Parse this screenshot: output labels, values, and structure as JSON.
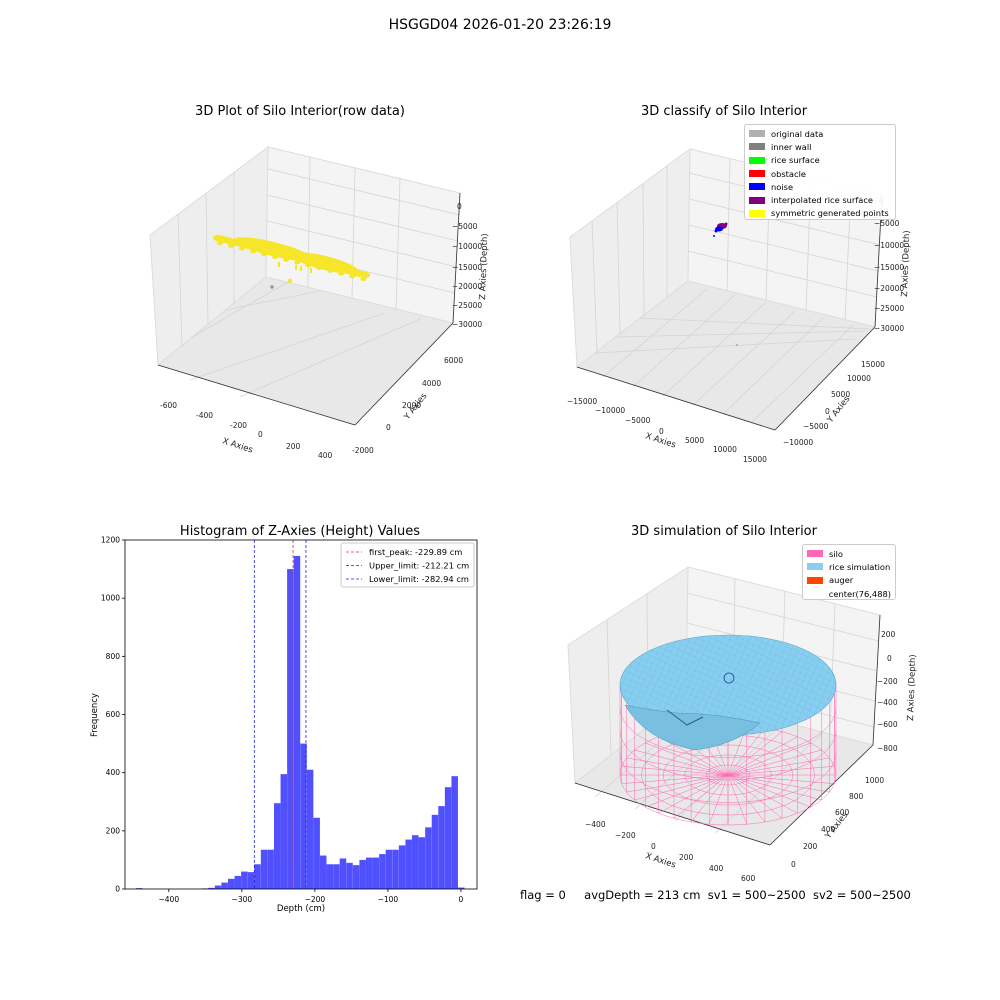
{
  "figure": {
    "suptitle": "HSGGD04 2026-01-20 23:26:19",
    "status": {
      "flag": "flag = 0",
      "avg_depth": "avgDepth = 213 cm",
      "sv1": "sv1 = 500~2500",
      "sv2": "sv2 = 500~2500"
    }
  },
  "colors": {
    "yellow": "#f5e62a",
    "hist_bar": "#5050ff",
    "peak_line": "#e03030",
    "limit_line": "#2020e0",
    "silo": "#ff69b4",
    "rice": "#87cef0",
    "auger": "#ff4500",
    "pane": "#f2f2f2",
    "pane_dark": "#e6e6e6",
    "grid": "#d0d0d0"
  },
  "chart_data": [
    {
      "type": "scatter",
      "title": "3D Plot of Silo Interior(row data)",
      "xlabel": "X Axies",
      "ylabel": "Y Axies",
      "zlabel": "Z Axies (Depth)",
      "xticks": [
        "-600",
        "-400",
        "-200",
        "0",
        "200",
        "400"
      ],
      "yticks": [
        "-2000",
        "0",
        "2000",
        "4000",
        "6000"
      ],
      "zticks": [
        "0",
        "−5000",
        "−10000",
        "−15000",
        "−20000",
        "−25000",
        "−30000"
      ]
    },
    {
      "type": "scatter",
      "title": "3D classify of Silo Interior",
      "xlabel": "X Axies",
      "ylabel": "Y Axies",
      "zlabel": "Z Axies (Depth)",
      "xticks": [
        "−15000",
        "−10000",
        "−5000",
        "0",
        "5000",
        "10000",
        "15000"
      ],
      "yticks": [
        "−10000",
        "−5000",
        "0",
        "5000",
        "10000",
        "15000"
      ],
      "zticks": [
        "0",
        "−5000",
        "−10000",
        "−15000",
        "−20000",
        "−25000",
        "−30000"
      ],
      "legend": [
        {
          "label": "original data",
          "color": "#b0b0b0"
        },
        {
          "label": "inner wall",
          "color": "#808080"
        },
        {
          "label": "rice surface",
          "color": "#00ff00"
        },
        {
          "label": "obstacle",
          "color": "#ff0000"
        },
        {
          "label": "noise",
          "color": "#0000ff"
        },
        {
          "label": "interpolated rice surface",
          "color": "#800080"
        },
        {
          "label": "symmetric generated points",
          "color": "#ffff00"
        }
      ]
    },
    {
      "type": "bar",
      "title": "Histogram of Z-Axies (Height) Values",
      "xlabel": "Depth (cm)",
      "ylabel": "Frequency",
      "xlim": [
        -460,
        22
      ],
      "ylim": [
        0,
        1200
      ],
      "xticks": [
        "−400",
        "−300",
        "−200",
        "−100",
        "0"
      ],
      "yticks": [
        "0",
        "200",
        "400",
        "600",
        "800",
        "1000",
        "1200"
      ],
      "bin_width": 8.9,
      "bins": [
        [
          -445,
          3
        ],
        [
          -355,
          2
        ],
        [
          -346,
          4
        ],
        [
          -337,
          12
        ],
        [
          -328,
          22
        ],
        [
          -319,
          35
        ],
        [
          -310,
          45
        ],
        [
          -301,
          60
        ],
        [
          -292,
          58
        ],
        [
          -283,
          85
        ],
        [
          -274,
          135
        ],
        [
          -265,
          135
        ],
        [
          -256,
          295
        ],
        [
          -247,
          395
        ],
        [
          -238,
          1100
        ],
        [
          -229,
          1145
        ],
        [
          -220,
          500
        ],
        [
          -211,
          410
        ],
        [
          -202,
          245
        ],
        [
          -193,
          115
        ],
        [
          -184,
          85
        ],
        [
          -175,
          85
        ],
        [
          -166,
          105
        ],
        [
          -157,
          90
        ],
        [
          -148,
          82
        ],
        [
          -139,
          100
        ],
        [
          -130,
          108
        ],
        [
          -121,
          108
        ],
        [
          -112,
          120
        ],
        [
          -103,
          135
        ],
        [
          -94,
          135
        ],
        [
          -85,
          150
        ],
        [
          -76,
          170
        ],
        [
          -67,
          185
        ],
        [
          -58,
          178
        ],
        [
          -49,
          212
        ],
        [
          -40,
          255
        ],
        [
          -31,
          285
        ],
        [
          -22,
          350
        ],
        [
          -13,
          388
        ],
        [
          -4,
          5
        ]
      ],
      "lines": [
        {
          "label": "first_peak: -229.89 cm",
          "x": -229.89,
          "color": "#e03030"
        },
        {
          "label": "Upper_limit: -212.21 cm",
          "x": -212.21,
          "color": "#2020e0"
        },
        {
          "label": "Lower_limit: -282.94 cm",
          "x": -282.94,
          "color": "#2020e0"
        }
      ]
    },
    {
      "type": "scatter",
      "title": "3D simulation of Silo Interior",
      "xlabel": "X Axies",
      "ylabel": "Y Axies",
      "zlabel": "Z Axies (Depth)",
      "xticks": [
        "−400",
        "−200",
        "0",
        "200",
        "400",
        "600"
      ],
      "yticks": [
        "0",
        "200",
        "400",
        "600",
        "800",
        "1000"
      ],
      "zticks": [
        "200",
        "0",
        "−200",
        "−400",
        "−600",
        "−800"
      ],
      "legend": [
        {
          "label": "silo",
          "color": "#ff69b4"
        },
        {
          "label": "rice simulation",
          "color": "#87cef0"
        },
        {
          "label": "auger",
          "color": "#ff4500"
        },
        {
          "label": "center(76,488)",
          "color": ""
        }
      ]
    }
  ]
}
